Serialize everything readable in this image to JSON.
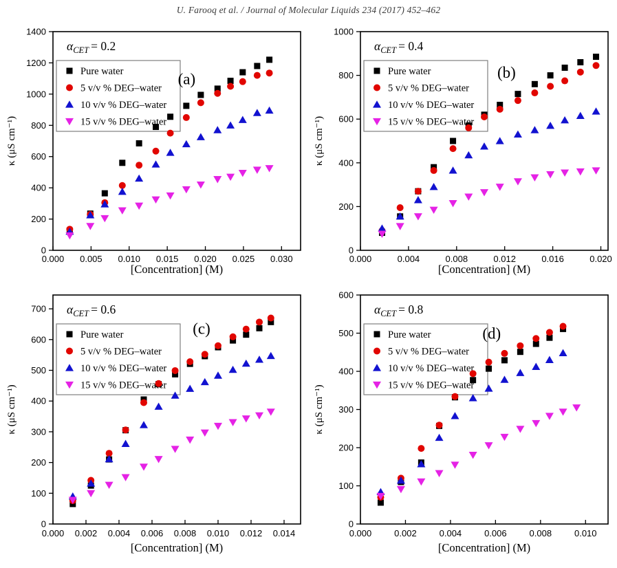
{
  "header": {
    "text": "U. Farooq et al. / Journal of Molecular Liquids 234 (2017) 452–462"
  },
  "colors": {
    "pure_water": "#000000",
    "deg5": "#e10600",
    "deg10": "#1212d0",
    "deg15": "#e522e5",
    "frame": "#000000",
    "legend_border": "#7f7f7f"
  },
  "chart_data": [
    {
      "type": "scatter",
      "panel_label": "(a)",
      "title": {
        "symbol": "α",
        "subscript": "CET",
        "value": "= 0.2"
      },
      "xlabel": "[Concentration] (M)",
      "ylabel": "κ (μS cm⁻¹)",
      "xlim": [
        0,
        0.0325
      ],
      "ylim": [
        0,
        1400
      ],
      "xticks": [
        0,
        0.005,
        0.01,
        0.015,
        0.02,
        0.025,
        0.03
      ],
      "xtick_labels": [
        "0.000",
        "0.005",
        "0.010",
        "0.015",
        "0.020",
        "0.025",
        "0.030"
      ],
      "yticks": [
        0,
        200,
        400,
        600,
        800,
        1000,
        1200,
        1400
      ],
      "legend_position": "top-left",
      "grid": false,
      "series": [
        {
          "name": "Pure water",
          "marker": "square",
          "color_key": "pure_water",
          "x": [
            0.0022,
            0.0049,
            0.0068,
            0.0091,
            0.0113,
            0.0135,
            0.0154,
            0.0175,
            0.0194,
            0.0216,
            0.0233,
            0.0249,
            0.0268,
            0.0284
          ],
          "y": [
            125,
            235,
            365,
            560,
            685,
            790,
            855,
            925,
            995,
            1035,
            1085,
            1140,
            1180,
            1220
          ]
        },
        {
          "name": "5 v/v % DEG–water",
          "marker": "circle",
          "color_key": "deg5",
          "x": [
            0.0022,
            0.0049,
            0.0068,
            0.0091,
            0.0113,
            0.0135,
            0.0154,
            0.0175,
            0.0194,
            0.0216,
            0.0233,
            0.0249,
            0.0268,
            0.0284
          ],
          "y": [
            135,
            230,
            305,
            415,
            545,
            635,
            750,
            850,
            945,
            1005,
            1050,
            1080,
            1120,
            1135
          ]
        },
        {
          "name": "10 v/v % DEG–water",
          "marker": "triangle-up",
          "color_key": "deg10",
          "x": [
            0.0022,
            0.0049,
            0.0068,
            0.0091,
            0.0113,
            0.0135,
            0.0154,
            0.0175,
            0.0194,
            0.0216,
            0.0233,
            0.0249,
            0.0268,
            0.0284
          ],
          "y": [
            120,
            225,
            295,
            375,
            460,
            550,
            625,
            680,
            725,
            770,
            800,
            835,
            880,
            895
          ]
        },
        {
          "name": "15 v/v % DEG–water",
          "marker": "triangle-down",
          "color_key": "deg15",
          "x": [
            0.0022,
            0.0049,
            0.0068,
            0.0091,
            0.0113,
            0.0135,
            0.0154,
            0.0175,
            0.0194,
            0.0216,
            0.0233,
            0.0249,
            0.0268,
            0.0284
          ],
          "y": [
            95,
            155,
            205,
            255,
            285,
            325,
            350,
            390,
            420,
            455,
            470,
            495,
            515,
            525
          ]
        }
      ]
    },
    {
      "type": "scatter",
      "panel_label": "(b)",
      "title": {
        "symbol": "α",
        "subscript": "CET",
        "value": "= 0.4"
      },
      "xlabel": "[Concentration] (M)",
      "ylabel": "κ (μS cm⁻¹)",
      "xlim": [
        0,
        0.0206
      ],
      "ylim": [
        0,
        1000
      ],
      "xticks": [
        0,
        0.004,
        0.008,
        0.012,
        0.016,
        0.02
      ],
      "xtick_labels": [
        "0.000",
        "0.004",
        "0.008",
        "0.012",
        "0.016",
        "0.020"
      ],
      "yticks": [
        0,
        200,
        400,
        600,
        800,
        1000
      ],
      "legend_position": "top-left",
      "grid": false,
      "series": [
        {
          "name": "Pure water",
          "marker": "square",
          "color_key": "pure_water",
          "x": [
            0.0018,
            0.0033,
            0.0048,
            0.0061,
            0.0077,
            0.009,
            0.0103,
            0.0116,
            0.0131,
            0.0145,
            0.0158,
            0.017,
            0.0183,
            0.0196
          ],
          "y": [
            80,
            155,
            270,
            380,
            500,
            570,
            620,
            665,
            715,
            760,
            800,
            835,
            860,
            885
          ]
        },
        {
          "name": "5 v/v % DEG–water",
          "marker": "circle",
          "color_key": "deg5",
          "x": [
            0.0018,
            0.0033,
            0.0048,
            0.0061,
            0.0077,
            0.009,
            0.0103,
            0.0116,
            0.0131,
            0.0145,
            0.0158,
            0.017,
            0.0183,
            0.0196
          ],
          "y": [
            90,
            195,
            270,
            365,
            465,
            560,
            610,
            645,
            685,
            720,
            750,
            775,
            815,
            845
          ]
        },
        {
          "name": "10 v/v % DEG–water",
          "marker": "triangle-up",
          "color_key": "deg10",
          "x": [
            0.0018,
            0.0033,
            0.0048,
            0.0061,
            0.0077,
            0.009,
            0.0103,
            0.0116,
            0.0131,
            0.0145,
            0.0158,
            0.017,
            0.0183,
            0.0196
          ],
          "y": [
            100,
            155,
            230,
            290,
            365,
            435,
            475,
            500,
            530,
            550,
            570,
            595,
            615,
            635
          ]
        },
        {
          "name": "15 v/v % DEG–water",
          "marker": "triangle-down",
          "color_key": "deg15",
          "x": [
            0.0018,
            0.0033,
            0.0048,
            0.0061,
            0.0077,
            0.009,
            0.0103,
            0.0116,
            0.0131,
            0.0145,
            0.0158,
            0.017,
            0.0183,
            0.0196
          ],
          "y": [
            75,
            110,
            155,
            185,
            215,
            245,
            265,
            290,
            315,
            333,
            347,
            355,
            360,
            365
          ]
        }
      ]
    },
    {
      "type": "scatter",
      "panel_label": "(c)",
      "title": {
        "symbol": "α",
        "subscript": "CET",
        "value": "= 0.6"
      },
      "xlabel": "[Concentration] (M)",
      "ylabel": "κ (μS cm⁻¹)",
      "xlim": [
        0,
        0.015
      ],
      "ylim": [
        0,
        745
      ],
      "xticks": [
        0,
        0.002,
        0.004,
        0.006,
        0.008,
        0.01,
        0.012,
        0.014
      ],
      "xtick_labels": [
        "0.000",
        "0.002",
        "0.004",
        "0.006",
        "0.008",
        "0.010",
        "0.012",
        "0.014"
      ],
      "yticks": [
        0,
        100,
        200,
        300,
        400,
        500,
        600,
        700
      ],
      "legend_position": "top-left",
      "grid": false,
      "series": [
        {
          "name": "Pure water",
          "marker": "square",
          "color_key": "pure_water",
          "x": [
            0.0012,
            0.0023,
            0.0034,
            0.0044,
            0.0055,
            0.0064,
            0.0074,
            0.0083,
            0.0092,
            0.01,
            0.0109,
            0.0117,
            0.0125,
            0.0132
          ],
          "y": [
            65,
            125,
            210,
            305,
            405,
            455,
            487,
            521,
            546,
            575,
            597,
            616,
            637,
            657
          ]
        },
        {
          "name": "5 v/v % DEG–water",
          "marker": "circle",
          "color_key": "deg5",
          "x": [
            0.0012,
            0.0023,
            0.0034,
            0.0044,
            0.0055,
            0.0064,
            0.0074,
            0.0083,
            0.0092,
            0.01,
            0.0109,
            0.0117,
            0.0125,
            0.0132
          ],
          "y": [
            76,
            142,
            230,
            306,
            395,
            457,
            499,
            528,
            552,
            580,
            609,
            634,
            657,
            670
          ]
        },
        {
          "name": "10 v/v % DEG–water",
          "marker": "triangle-up",
          "color_key": "deg10",
          "x": [
            0.0012,
            0.0023,
            0.0034,
            0.0044,
            0.0055,
            0.0064,
            0.0074,
            0.0083,
            0.0092,
            0.01,
            0.0109,
            0.0117,
            0.0125,
            0.0132
          ],
          "y": [
            90,
            132,
            211,
            261,
            322,
            382,
            418,
            440,
            462,
            483,
            502,
            522,
            535,
            547
          ]
        },
        {
          "name": "15 v/v % DEG–water",
          "marker": "triangle-down",
          "color_key": "deg15",
          "x": [
            0.0012,
            0.0023,
            0.0034,
            0.0044,
            0.0055,
            0.0064,
            0.0074,
            0.0083,
            0.0092,
            0.01,
            0.0109,
            0.0117,
            0.0125,
            0.0132
          ],
          "y": [
            78,
            100,
            127,
            152,
            186,
            211,
            244,
            274,
            297,
            319,
            331,
            343,
            353,
            365
          ]
        }
      ]
    },
    {
      "type": "scatter",
      "panel_label": "(d)",
      "title": {
        "symbol": "α",
        "subscript": "CET",
        "value": "= 0.8"
      },
      "xlabel": "[Concentration] (M)",
      "ylabel": "κ (μS cm⁻¹)",
      "xlim": [
        0,
        0.011
      ],
      "ylim": [
        0,
        600
      ],
      "xticks": [
        0,
        0.002,
        0.004,
        0.006,
        0.008,
        0.01
      ],
      "xtick_labels": [
        "0.000",
        "0.002",
        "0.004",
        "0.006",
        "0.008",
        "0.010"
      ],
      "yticks": [
        0,
        100,
        200,
        300,
        400,
        500,
        600
      ],
      "legend_position": "top-left",
      "grid": false,
      "series": [
        {
          "name": "Pure water",
          "marker": "square",
          "color_key": "pure_water",
          "x": [
            0.0009,
            0.0018,
            0.0027,
            0.0035,
            0.0042,
            0.005,
            0.0057,
            0.0064,
            0.0071,
            0.0078,
            0.0084,
            0.009
          ],
          "y": [
            56,
            110,
            161,
            257,
            332,
            377,
            407,
            429,
            451,
            472,
            488,
            511
          ]
        },
        {
          "name": "5 v/v % DEG–water",
          "marker": "circle",
          "color_key": "deg5",
          "x": [
            0.0009,
            0.0018,
            0.0027,
            0.0035,
            0.0042,
            0.005,
            0.0057,
            0.0064,
            0.0071,
            0.0078,
            0.0084,
            0.009
          ],
          "y": [
            70,
            120,
            198,
            259,
            334,
            394,
            424,
            447,
            467,
            486,
            502,
            518
          ]
        },
        {
          "name": "10 v/v % DEG–water",
          "marker": "triangle-up",
          "color_key": "deg10",
          "x": [
            0.0009,
            0.0018,
            0.0027,
            0.0035,
            0.0042,
            0.005,
            0.0057,
            0.0064,
            0.0071,
            0.0078,
            0.0084,
            0.009
          ],
          "y": [
            84,
            114,
            157,
            226,
            283,
            330,
            355,
            378,
            396,
            412,
            430,
            448
          ]
        },
        {
          "name": "15 v/v % DEG–water",
          "marker": "triangle-down",
          "color_key": "deg15",
          "x": [
            0.0009,
            0.0018,
            0.0027,
            0.0035,
            0.0042,
            0.005,
            0.0057,
            0.0064,
            0.0071,
            0.0078,
            0.0084,
            0.009,
            0.0096
          ],
          "y": [
            73,
            91,
            111,
            133,
            155,
            181,
            206,
            228,
            249,
            264,
            283,
            294,
            305
          ]
        }
      ]
    }
  ]
}
